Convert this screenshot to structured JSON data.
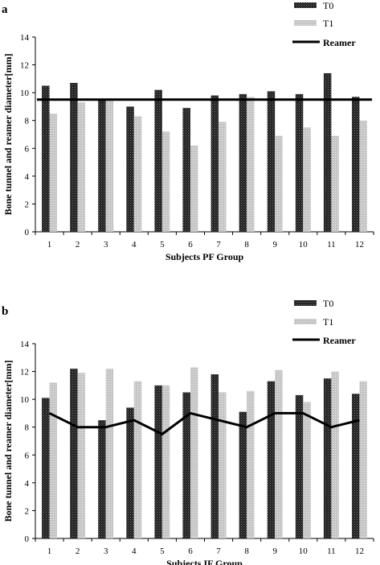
{
  "chart_data": [
    {
      "type": "bar",
      "panel": "a",
      "xlabel": "Subjects PF Group",
      "ylabel": "Bone tunnel and  reamer diameter[mm]",
      "ylim": [
        0,
        14
      ],
      "yticks": [
        0,
        2,
        4,
        6,
        8,
        10,
        12,
        14
      ],
      "categories": [
        "1",
        "2",
        "3",
        "4",
        "5",
        "6",
        "7",
        "8",
        "9",
        "10",
        "11",
        "12"
      ],
      "series": [
        {
          "name": "T0",
          "kind": "bar",
          "color": "#222222",
          "values": [
            10.5,
            10.7,
            9.5,
            9.0,
            10.2,
            8.9,
            9.8,
            9.9,
            10.1,
            9.9,
            11.4,
            9.7
          ]
        },
        {
          "name": "T1",
          "kind": "bar",
          "color": "#c8c8c8",
          "values": [
            8.5,
            9.3,
            9.5,
            8.3,
            7.2,
            6.2,
            7.9,
            9.7,
            6.9,
            7.5,
            6.9,
            8.0
          ]
        },
        {
          "name": "Reamer",
          "kind": "line",
          "color": "#000000",
          "values": [
            9.5,
            9.5,
            9.5,
            9.5,
            9.5,
            9.5,
            9.5,
            9.5,
            9.5,
            9.5,
            9.5,
            9.5
          ]
        }
      ],
      "legend": "top-right",
      "grid": false
    },
    {
      "type": "bar",
      "panel": "b",
      "xlabel": "Subjects IF Group",
      "ylabel": "Bone tunnel and reamer diameter[mm]",
      "ylim": [
        0,
        14
      ],
      "yticks": [
        0,
        2,
        4,
        6,
        8,
        10,
        12,
        14
      ],
      "categories": [
        "1",
        "2",
        "3",
        "4",
        "5",
        "6",
        "7",
        "8",
        "9",
        "10",
        "11",
        "12"
      ],
      "series": [
        {
          "name": "T0",
          "kind": "bar",
          "color": "#222222",
          "values": [
            10.1,
            12.2,
            8.5,
            9.4,
            11.0,
            10.5,
            11.8,
            9.1,
            11.3,
            10.3,
            11.5,
            10.4
          ]
        },
        {
          "name": "T1",
          "kind": "bar",
          "color": "#c8c8c8",
          "values": [
            11.2,
            11.9,
            12.2,
            11.3,
            11.0,
            12.3,
            10.5,
            10.6,
            12.1,
            9.8,
            12.0,
            11.3
          ]
        },
        {
          "name": "Reamer",
          "kind": "line",
          "color": "#000000",
          "values": [
            9.0,
            8.0,
            8.0,
            8.5,
            7.5,
            9.0,
            8.5,
            8.0,
            9.0,
            9.0,
            8.0,
            8.5
          ]
        }
      ],
      "legend": "top-right",
      "grid": false
    }
  ]
}
